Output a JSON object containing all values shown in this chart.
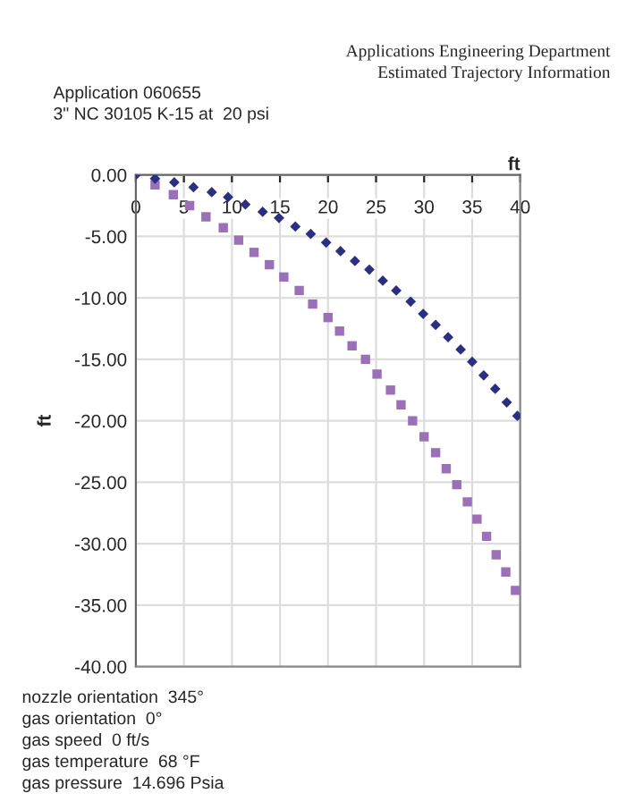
{
  "chart_data": {
    "type": "scatter",
    "xlabel": "ft",
    "ylabel": "ft",
    "annotations": [
      "Applications Engineering Department",
      "Estimated Trajectory Information",
      "Application 060655",
      "3\" NC 30105 K-15 at  20 psi",
      "nozzle orientation  345°",
      "gas orientation  0°",
      "gas speed  0 ft/s",
      "gas temperature  68 °F",
      "gas pressure  14.696 Psia"
    ],
    "series": [
      {
        "color": "#2b2f7f",
        "marker": "diamond",
        "x": [
          0,
          2.0,
          4.0,
          6.0,
          7.9,
          9.6,
          11.4,
          13.2,
          14.9,
          16.6,
          18.2,
          19.8,
          21.3,
          22.8,
          24.3,
          25.7,
          27.1,
          28.6,
          29.9,
          31.2,
          32.5,
          33.8,
          35.0,
          36.2,
          37.4,
          38.6,
          39.7
        ],
        "values": [
          0,
          -0.3,
          -0.6,
          -1.0,
          -1.4,
          -1.8,
          -2.4,
          -3.0,
          -3.5,
          -4.2,
          -4.8,
          -5.5,
          -6.2,
          -7.0,
          -7.7,
          -8.6,
          -9.4,
          -10.3,
          -11.3,
          -12.2,
          -13.2,
          -14.2,
          -15.2,
          -16.3,
          -17.4,
          -18.5,
          -19.6
        ]
      },
      {
        "color": "#9b70b8",
        "marker": "square",
        "x": [
          2.0,
          3.9,
          5.6,
          7.3,
          9.1,
          10.7,
          12.3,
          13.9,
          15.4,
          17.0,
          18.4,
          20.0,
          21.2,
          22.5,
          23.9,
          25.1,
          26.5,
          27.6,
          28.8,
          30.0,
          31.2,
          32.3,
          33.4,
          34.5,
          35.5,
          36.5,
          37.5,
          38.5,
          39.5
        ],
        "values": [
          -0.8,
          -1.6,
          -2.5,
          -3.4,
          -4.3,
          -5.3,
          -6.3,
          -7.3,
          -8.3,
          -9.4,
          -10.5,
          -11.6,
          -12.7,
          -13.9,
          -15.0,
          -16.2,
          -17.5,
          -18.7,
          -20.0,
          -21.3,
          -22.6,
          -23.9,
          -25.2,
          -26.6,
          -28.0,
          -29.4,
          -30.9,
          -32.3,
          -33.8
        ]
      }
    ],
    "xlim": [
      0,
      40
    ],
    "xticks": [
      0,
      5,
      10,
      15,
      20,
      25,
      30,
      35,
      40
    ],
    "ylim": [
      -40,
      0
    ],
    "yticks": [
      {
        "value": 0,
        "label": "0.00"
      },
      {
        "value": -5,
        "label": "-5.00"
      },
      {
        "value": -10,
        "label": "-10.00"
      },
      {
        "value": -15,
        "label": "-15.00"
      },
      {
        "value": -20,
        "label": "-20.00"
      },
      {
        "value": -25,
        "label": "-25.00"
      },
      {
        "value": -30,
        "label": "-30.00"
      },
      {
        "value": -35,
        "label": "-35.00"
      },
      {
        "value": -40,
        "label": "-40.00"
      }
    ],
    "grid": true
  }
}
